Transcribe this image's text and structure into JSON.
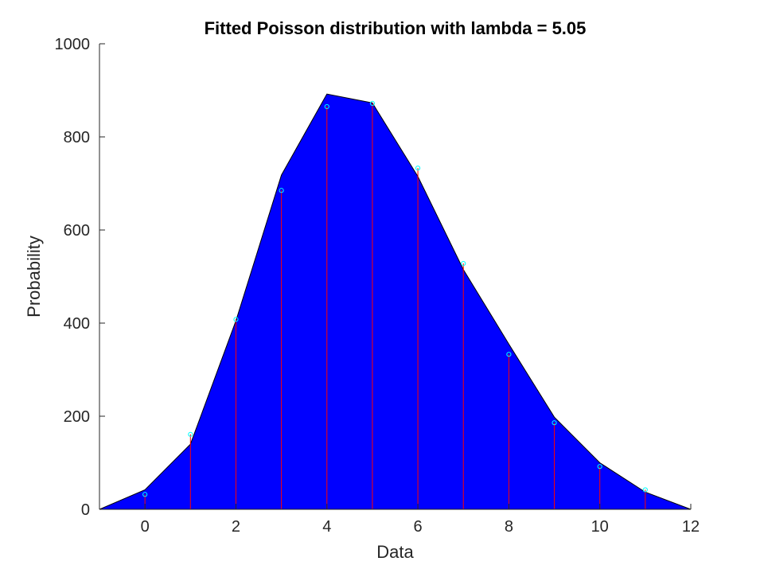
{
  "chart_data": {
    "type": "area",
    "title": "Fitted Poisson distribution with lambda = 5.05",
    "xlabel": "Data",
    "ylabel": "Probability",
    "xlim": [
      -1,
      12
    ],
    "ylim": [
      0,
      1000
    ],
    "xticks": [
      0,
      2,
      4,
      6,
      8,
      10,
      12
    ],
    "yticks": [
      0,
      200,
      400,
      600,
      800,
      1000
    ],
    "grid": false,
    "fitted_curve": {
      "x": [
        -1,
        0,
        1,
        2,
        3,
        4,
        5,
        6,
        7,
        8,
        9,
        10,
        11,
        12
      ],
      "y": [
        0,
        42,
        140,
        405,
        718,
        892,
        873,
        715,
        515,
        355,
        198,
        100,
        37,
        0
      ],
      "fill_color": "#0000ff"
    },
    "observed": {
      "x": [
        0,
        1,
        2,
        3,
        4,
        5,
        6,
        7,
        8,
        9,
        10,
        11
      ],
      "y": [
        32,
        161,
        408,
        685,
        865,
        872,
        733,
        528,
        333,
        186,
        92,
        42
      ],
      "stem_color": "#ff0000",
      "marker_color": "#00ffff"
    }
  }
}
